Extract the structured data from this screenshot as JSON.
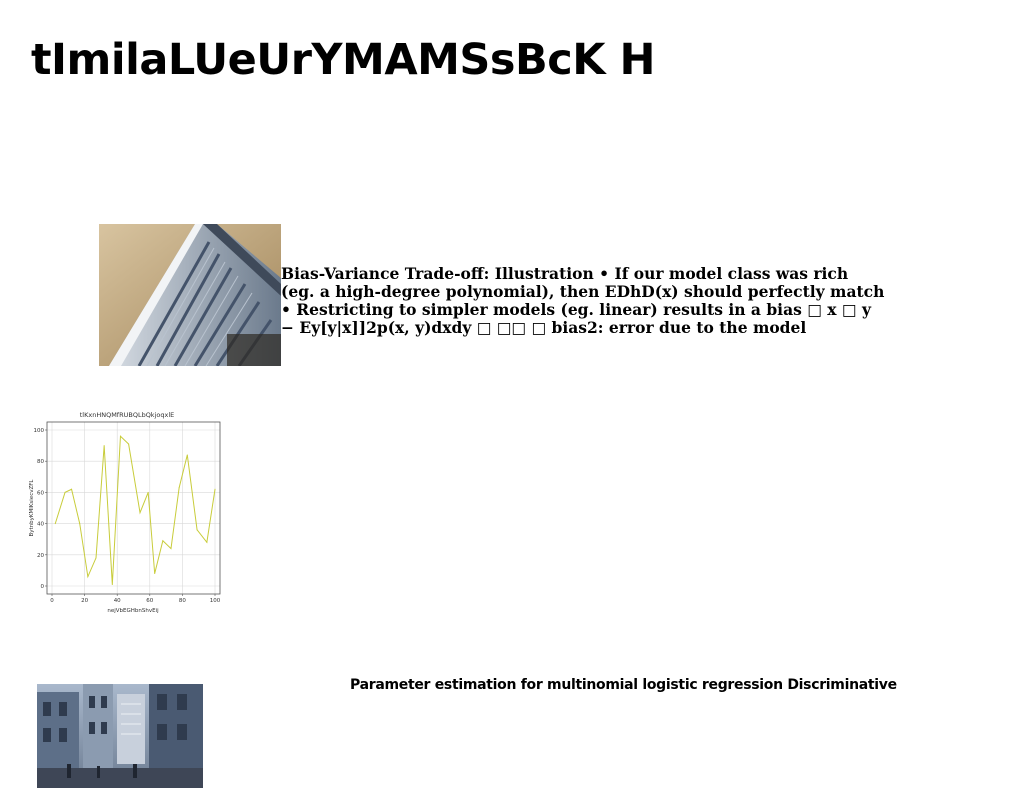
{
  "page": {
    "title": "tImilaLUeUrYMAMSsBcK H"
  },
  "content": {
    "text_lines": [
      "Bias-Variance Trade-off: Illustration • If our model class was rich",
      "(eg. a high-degree polynomial), then EDhD(x) should perfectly match",
      "• Restricting to simpler models (eg. linear) results in a bias □ x □ y",
      "− Ey[y|x]]2p(x, y)dxdy □ □□ □ bias2: error due to the model"
    ],
    "caption": "Parameter estimation for multinomial logistic regression Discriminative"
  },
  "images": {
    "building_photo": "building-photo",
    "street_photo": "street-photo"
  },
  "chart_data": {
    "type": "line",
    "title": "tlKxnHNQMfRUBQLbQkjoqxlE",
    "xlabel": "nejVbEGHbnShvEij",
    "ylabel": "BytnbyKMlKsiecvZFL",
    "xlim": [
      0,
      100
    ],
    "ylim": [
      0,
      100
    ],
    "xticks": [
      0,
      20,
      40,
      60,
      80,
      100
    ],
    "yticks": [
      0,
      20,
      40,
      60,
      80,
      100
    ],
    "grid": true,
    "color": "#c8cc3a",
    "x": [
      2,
      8,
      12,
      17,
      22,
      27,
      32,
      37,
      42,
      47,
      54,
      59,
      63,
      68,
      73,
      78,
      83,
      89,
      95,
      100
    ],
    "values": [
      40,
      60,
      62,
      40,
      6,
      18,
      90,
      1,
      96,
      91,
      47,
      60,
      8,
      29,
      24,
      63,
      84,
      36,
      28,
      62
    ]
  }
}
